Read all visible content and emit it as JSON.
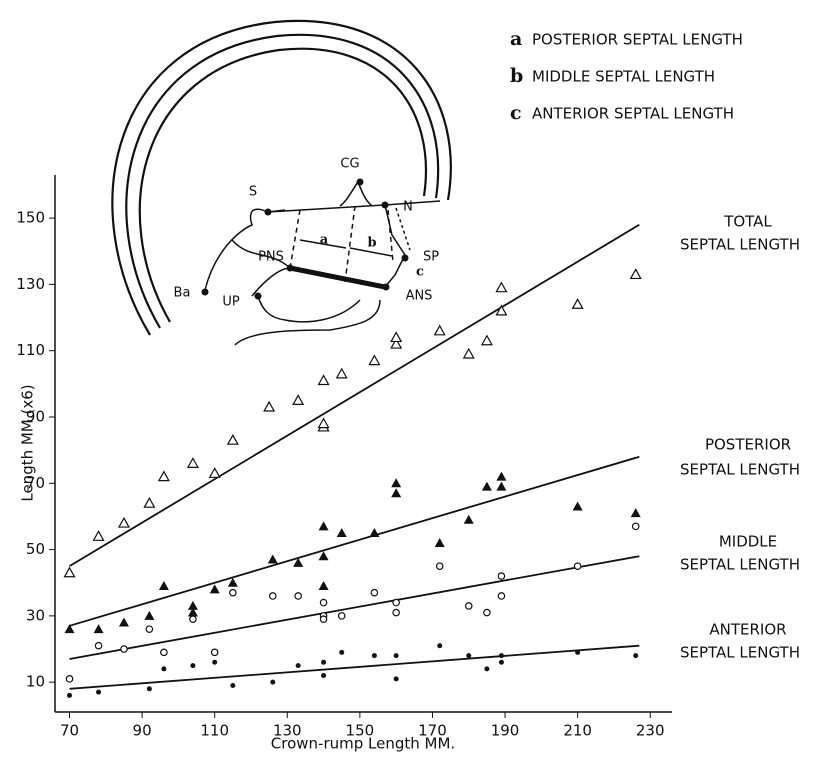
{
  "chart_data": {
    "type": "scatter",
    "y_label": "Length MM.(x6)",
    "x_label": "Crown-rump Length MM.",
    "xlim": [
      66,
      236
    ],
    "ylim": [
      1,
      163
    ],
    "xticks": [
      70,
      90,
      110,
      130,
      150,
      170,
      190,
      210,
      230
    ],
    "yticks": [
      10,
      30,
      50,
      70,
      90,
      110,
      130,
      150
    ],
    "legend": [
      {
        "letter": "a",
        "text": "POSTERIOR SEPTAL LENGTH"
      },
      {
        "letter": "b",
        "text": "MIDDLE SEPTAL LENGTH"
      },
      {
        "letter": "c",
        "text": "ANTERIOR SEPTAL LENGTH"
      }
    ],
    "diagram_labels": [
      "S",
      "CG",
      "N",
      "SP",
      "PNS",
      "Ba",
      "UP",
      "ANS",
      "a",
      "b",
      "c"
    ],
    "series": [
      {
        "name_lines": [
          "TOTAL",
          "SEPTAL LENGTH"
        ],
        "marker": "open-triangle",
        "color": "#111111",
        "x": [
          70,
          78,
          85,
          92,
          96,
          104,
          110,
          115,
          125,
          133,
          140,
          140,
          140,
          145,
          154,
          160,
          160,
          172,
          180,
          185,
          189,
          189,
          210,
          226
        ],
        "values": [
          43,
          54,
          58,
          64,
          72,
          76,
          73,
          83,
          93,
          95,
          87,
          88,
          101,
          103,
          107,
          112,
          114,
          116,
          109,
          113,
          129,
          122,
          124,
          133
        ],
        "fit": {
          "x": [
            70,
            227
          ],
          "y": [
            45,
            148
          ]
        }
      },
      {
        "name_lines": [
          "POSTERIOR",
          "SEPTAL LENGTH"
        ],
        "marker": "filled-triangle",
        "color": "#111111",
        "x": [
          70,
          78,
          85,
          92,
          96,
          104,
          104,
          110,
          115,
          126,
          133,
          140,
          140,
          140,
          145,
          154,
          160,
          160,
          172,
          180,
          185,
          189,
          189,
          210,
          226
        ],
        "values": [
          26,
          26,
          28,
          30,
          39,
          31,
          33,
          38,
          40,
          47,
          46,
          48,
          39,
          57,
          55,
          55,
          67,
          70,
          52,
          59,
          69,
          69,
          72,
          63,
          61
        ],
        "fit": {
          "x": [
            70,
            227
          ],
          "y": [
            27,
            78
          ]
        }
      },
      {
        "name_lines": [
          "MIDDLE",
          "SEPTAL LENGTH"
        ],
        "marker": "open-circle",
        "color": "#111111",
        "x": [
          70,
          78,
          85,
          92,
          96,
          104,
          110,
          115,
          126,
          133,
          140,
          140,
          140,
          145,
          154,
          160,
          160,
          172,
          180,
          185,
          189,
          189,
          210,
          226
        ],
        "values": [
          11,
          21,
          20,
          26,
          19,
          29,
          19,
          37,
          36,
          36,
          30,
          34,
          29,
          30,
          37,
          34,
          31,
          45,
          33,
          31,
          42,
          36,
          45,
          57
        ],
        "fit": {
          "x": [
            70,
            227
          ],
          "y": [
            17,
            48
          ]
        }
      },
      {
        "name_lines": [
          "ANTERIOR",
          "SEPTAL LENGTH"
        ],
        "marker": "filled-circle",
        "color": "#111111",
        "x": [
          70,
          78,
          92,
          96,
          104,
          110,
          115,
          126,
          133,
          140,
          140,
          145,
          154,
          160,
          160,
          172,
          180,
          185,
          189,
          189,
          210,
          226
        ],
        "values": [
          6,
          7,
          8,
          14,
          15,
          16,
          9,
          10,
          15,
          12,
          16,
          19,
          18,
          18,
          11,
          21,
          18,
          14,
          16,
          18,
          19,
          18
        ],
        "fit": {
          "x": [
            70,
            227
          ],
          "y": [
            8,
            21
          ]
        }
      }
    ]
  }
}
